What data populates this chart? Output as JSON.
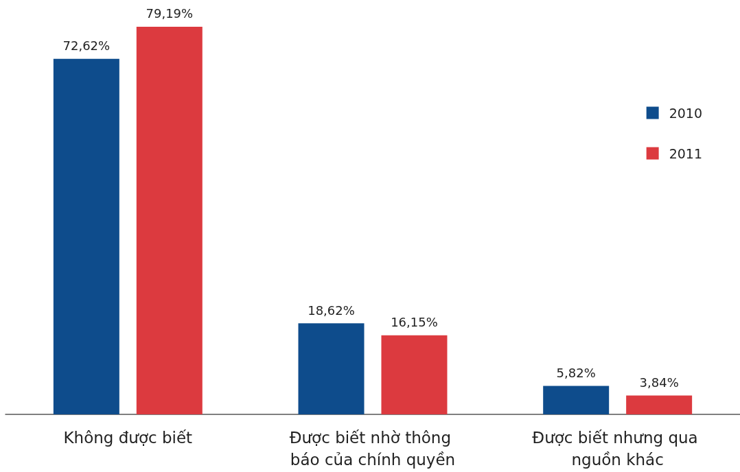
{
  "chart_data": {
    "type": "bar",
    "categories": [
      "Không được biết",
      "Được biết nhờ thông báo của chính quyền",
      "Được biết nhưng qua nguồn khác"
    ],
    "series": [
      {
        "name": "2010",
        "color": "#0e4c8c",
        "values": [
          72.62,
          18.62,
          5.82
        ],
        "value_labels": [
          "72,62%",
          "18,62%",
          "5,82%"
        ]
      },
      {
        "name": "2011",
        "color": "#dc3a3f",
        "values": [
          79.19,
          16.15,
          3.84
        ],
        "value_labels": [
          "79,19%",
          "16,15%",
          "3,84%"
        ]
      }
    ],
    "legend": "top right",
    "grid": false
  }
}
